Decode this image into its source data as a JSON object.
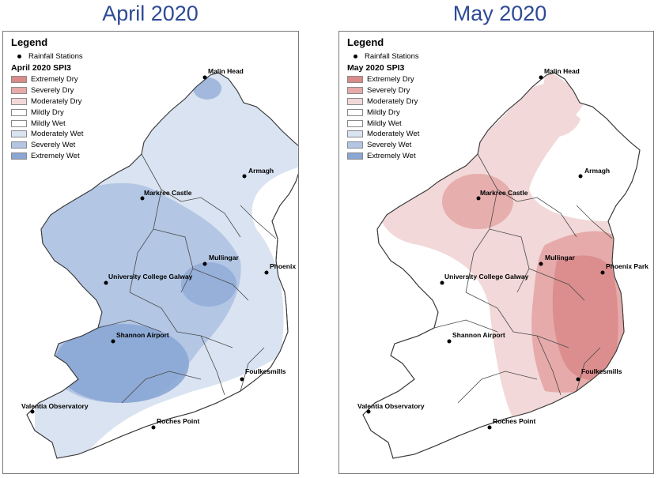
{
  "panels": [
    {
      "title": "April 2020",
      "legend": {
        "title": "Legend",
        "stations_label": "Rainfall Stations",
        "subtitle": "April 2020 SPI3",
        "classes": [
          {
            "label": "Extremely Dry",
            "color": "#d98a8a"
          },
          {
            "label": "Severely Dry",
            "color": "#e6aaaa"
          },
          {
            "label": "Moderately Dry",
            "color": "#f2d8d8"
          },
          {
            "label": "Mildly Dry",
            "color": "#ffffff"
          },
          {
            "label": "Mildly Wet",
            "color": "#ffffff"
          },
          {
            "label": "Moderately Wet",
            "color": "#d9e3f1"
          },
          {
            "label": "Severely Wet",
            "color": "#b3c6e4"
          },
          {
            "label": "Extremely Wet",
            "color": "#8aa6d4"
          }
        ]
      }
    },
    {
      "title": "May 2020",
      "legend": {
        "title": "Legend",
        "stations_label": "Rainfall Stations",
        "subtitle": "May 2020 SPI3",
        "classes": [
          {
            "label": "Extremely Dry",
            "color": "#d98a8a"
          },
          {
            "label": "Severely Dry",
            "color": "#e6aaaa"
          },
          {
            "label": "Moderately Dry",
            "color": "#f2d8d8"
          },
          {
            "label": "Mildly Dry",
            "color": "#ffffff"
          },
          {
            "label": "Mildly Wet",
            "color": "#ffffff"
          },
          {
            "label": "Moderately Wet",
            "color": "#d9e3f1"
          },
          {
            "label": "Severely Wet",
            "color": "#b3c6e4"
          },
          {
            "label": "Extremely Wet",
            "color": "#8aa6d4"
          }
        ]
      }
    }
  ],
  "stations": [
    "Malin Head",
    "Armagh",
    "Markree Castle",
    "Mullingar",
    "Phoenix Park",
    "University College Galway",
    "Shannon Airport",
    "Foulkesmills",
    "Valentia Observatory",
    "Roches Point"
  ]
}
